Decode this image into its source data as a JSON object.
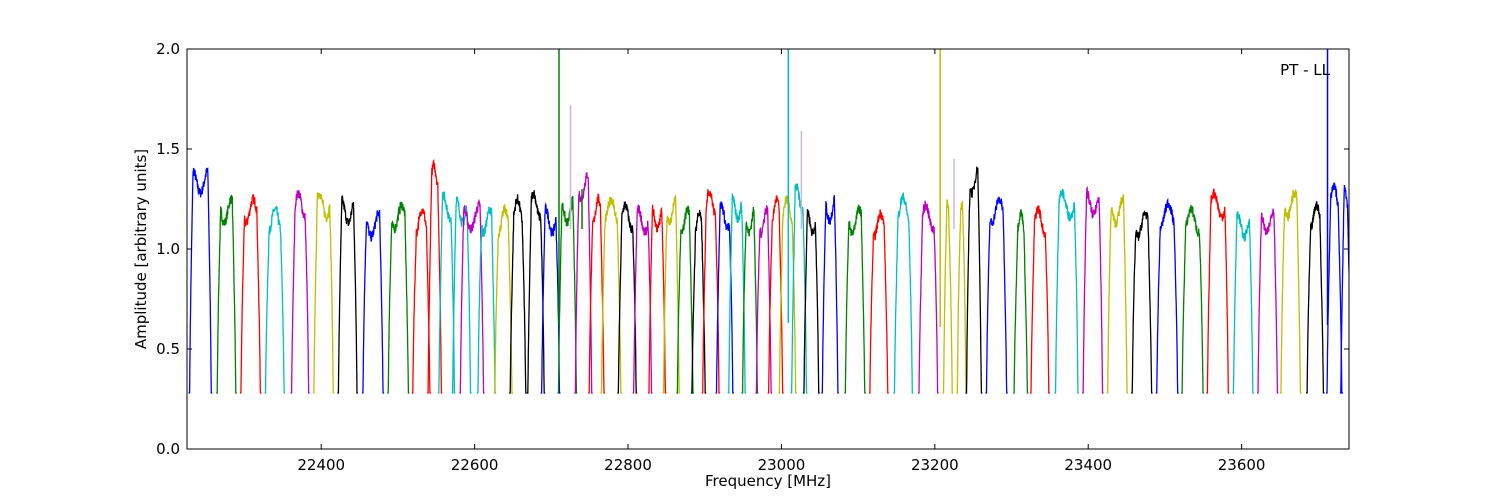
{
  "chart_data": {
    "type": "line",
    "title": "",
    "annotation": "PT - LL",
    "xlabel": "Frequency [MHz]",
    "ylabel": "Amplitude [arbitrary units]",
    "xlim": [
      22225,
      23740
    ],
    "ylim": [
      0.0,
      2.0
    ],
    "x_ticks": [
      22400,
      22600,
      22800,
      23000,
      23200,
      23400,
      23600
    ],
    "x_tick_labels": [
      "22400",
      "22600",
      "22800",
      "23000",
      "23200",
      "23400",
      "23600"
    ],
    "y_ticks": [
      0.0,
      0.5,
      1.0,
      1.5,
      2.0
    ],
    "y_tick_labels": [
      "0.0",
      "0.5",
      "1.0",
      "1.5",
      "2.0"
    ],
    "grid": false,
    "colors": {
      "blue": "#0000ff",
      "green": "#008000",
      "red": "#ff0000",
      "cyan": "#00bfbf",
      "magenta": "#bf00bf",
      "olive": "#bfbf00",
      "black": "#000000",
      "lavender": "#c8b8e0"
    },
    "band": {
      "floor": 0.28,
      "shoulder_width": 4.5,
      "floor_width": 1.5
    },
    "bands": [
      {
        "start": 22227,
        "end": 22258,
        "color": "blue",
        "peak": 1.4
      },
      {
        "start": 22263,
        "end": 22290,
        "color": "green",
        "peak": 1.25
      },
      {
        "start": 22294,
        "end": 22322,
        "color": "red",
        "peak": 1.25
      },
      {
        "start": 22326,
        "end": 22353,
        "color": "cyan",
        "peak": 1.2
      },
      {
        "start": 22360,
        "end": 22385,
        "color": "magenta",
        "peak": 1.28
      },
      {
        "start": 22389,
        "end": 22417,
        "color": "olive",
        "peak": 1.28
      },
      {
        "start": 22421,
        "end": 22448,
        "color": "black",
        "peak": 1.25
      },
      {
        "start": 22453,
        "end": 22482,
        "color": "blue",
        "peak": 1.18
      },
      {
        "start": 22486,
        "end": 22515,
        "color": "green",
        "peak": 1.22
      },
      {
        "start": 22518,
        "end": 22543,
        "color": "red",
        "peak": 1.2
      },
      {
        "start": 22538,
        "end": 22558,
        "color": "red",
        "peak": 1.42
      },
      {
        "start": 22552,
        "end": 22575,
        "color": "cyan",
        "peak": 1.27
      },
      {
        "start": 22570,
        "end": 22596,
        "color": "cyan",
        "peak": 1.25
      },
      {
        "start": 22580,
        "end": 22613,
        "color": "magenta",
        "peak": 1.22
      },
      {
        "start": 22603,
        "end": 22628,
        "color": "cyan",
        "peak": 1.2
      },
      {
        "start": 22625,
        "end": 22650,
        "color": "olive",
        "peak": 1.2
      },
      {
        "start": 22645,
        "end": 22668,
        "color": "black",
        "peak": 1.25
      },
      {
        "start": 22668,
        "end": 22692,
        "color": "black",
        "peak": 1.28
      },
      {
        "start": 22686,
        "end": 22712,
        "color": "blue",
        "peak": 1.2
      },
      {
        "start": 22708,
        "end": 22734,
        "color": "green",
        "peak": 1.25
      },
      {
        "start": 22730,
        "end": 22754,
        "color": "magenta",
        "peak": 1.37
      },
      {
        "start": 22748,
        "end": 22770,
        "color": "red",
        "peak": 1.25
      },
      {
        "start": 22764,
        "end": 22792,
        "color": "olive",
        "peak": 1.25
      },
      {
        "start": 22786,
        "end": 22812,
        "color": "black",
        "peak": 1.22
      },
      {
        "start": 22806,
        "end": 22832,
        "color": "magenta",
        "peak": 1.2
      },
      {
        "start": 22826,
        "end": 22850,
        "color": "red",
        "peak": 1.22
      },
      {
        "start": 22845,
        "end": 22868,
        "color": "olive",
        "peak": 1.25
      },
      {
        "start": 22863,
        "end": 22886,
        "color": "green",
        "peak": 1.2
      },
      {
        "start": 22882,
        "end": 22902,
        "color": "black",
        "peak": 1.18
      },
      {
        "start": 22896,
        "end": 22920,
        "color": "red",
        "peak": 1.29
      },
      {
        "start": 22914,
        "end": 22938,
        "color": "blue",
        "peak": 1.22
      },
      {
        "start": 22930,
        "end": 22954,
        "color": "cyan",
        "peak": 1.27
      },
      {
        "start": 22948,
        "end": 22970,
        "color": "green",
        "peak": 1.2
      },
      {
        "start": 22966,
        "end": 22988,
        "color": "magenta",
        "peak": 1.2
      },
      {
        "start": 22982,
        "end": 23003,
        "color": "red",
        "peak": 1.25
      },
      {
        "start": 22996,
        "end": 23020,
        "color": "olive",
        "peak": 1.25
      },
      {
        "start": 23012,
        "end": 23034,
        "color": "cyan",
        "peak": 1.31
      },
      {
        "start": 23028,
        "end": 23050,
        "color": "black",
        "peak": 1.2
      },
      {
        "start": 23052,
        "end": 23075,
        "color": "blue",
        "peak": 1.26
      },
      {
        "start": 23082,
        "end": 23110,
        "color": "green",
        "peak": 1.2
      },
      {
        "start": 23114,
        "end": 23140,
        "color": "red",
        "peak": 1.18
      },
      {
        "start": 23146,
        "end": 23172,
        "color": "cyan",
        "peak": 1.26
      },
      {
        "start": 23178,
        "end": 23205,
        "color": "magenta",
        "peak": 1.22
      },
      {
        "start": 23210,
        "end": 23224,
        "color": "olive",
        "peak": 1.3
      },
      {
        "start": 23228,
        "end": 23242,
        "color": "olive",
        "peak": 1.33
      },
      {
        "start": 23240,
        "end": 23262,
        "color": "black",
        "peak": 1.4
      },
      {
        "start": 23266,
        "end": 23295,
        "color": "blue",
        "peak": 1.25
      },
      {
        "start": 23302,
        "end": 23322,
        "color": "green",
        "peak": 1.18
      },
      {
        "start": 23324,
        "end": 23350,
        "color": "red",
        "peak": 1.2
      },
      {
        "start": 23356,
        "end": 23388,
        "color": "cyan",
        "peak": 1.28
      },
      {
        "start": 23392,
        "end": 23420,
        "color": "magenta",
        "peak": 1.29
      },
      {
        "start": 23424,
        "end": 23452,
        "color": "olive",
        "peak": 1.25
      },
      {
        "start": 23456,
        "end": 23484,
        "color": "black",
        "peak": 1.18
      },
      {
        "start": 23488,
        "end": 23518,
        "color": "blue",
        "peak": 1.23
      },
      {
        "start": 23521,
        "end": 23551,
        "color": "green",
        "peak": 1.2
      },
      {
        "start": 23554,
        "end": 23584,
        "color": "red",
        "peak": 1.28
      },
      {
        "start": 23588,
        "end": 23616,
        "color": "cyan",
        "peak": 1.18
      },
      {
        "start": 23620,
        "end": 23648,
        "color": "magenta",
        "peak": 1.2
      },
      {
        "start": 23650,
        "end": 23678,
        "color": "olive",
        "peak": 1.28
      },
      {
        "start": 23684,
        "end": 23708,
        "color": "black",
        "peak": 1.22
      },
      {
        "start": 23710,
        "end": 23732,
        "color": "blue",
        "peak": 1.32
      },
      {
        "start": 23728,
        "end": 23744,
        "color": "blue",
        "peak": 1.33
      }
    ],
    "spikes": [
      {
        "x": 22710,
        "low": 0.62,
        "high": 2.0,
        "color": "green"
      },
      {
        "x": 22725,
        "low": 1.1,
        "high": 1.72,
        "color": "lavender"
      },
      {
        "x": 22740,
        "low": 1.1,
        "high": 1.3,
        "color": "green"
      },
      {
        "x": 23009,
        "low": 0.63,
        "high": 2.0,
        "color": "cyan"
      },
      {
        "x": 23026,
        "low": 1.1,
        "high": 1.59,
        "color": "lavender"
      },
      {
        "x": 23207,
        "low": 0.61,
        "high": 2.0,
        "color": "olive"
      },
      {
        "x": 23225,
        "low": 1.1,
        "high": 1.45,
        "color": "lavender"
      },
      {
        "x": 23712,
        "low": 0.62,
        "high": 2.0,
        "color": "blue"
      }
    ]
  }
}
